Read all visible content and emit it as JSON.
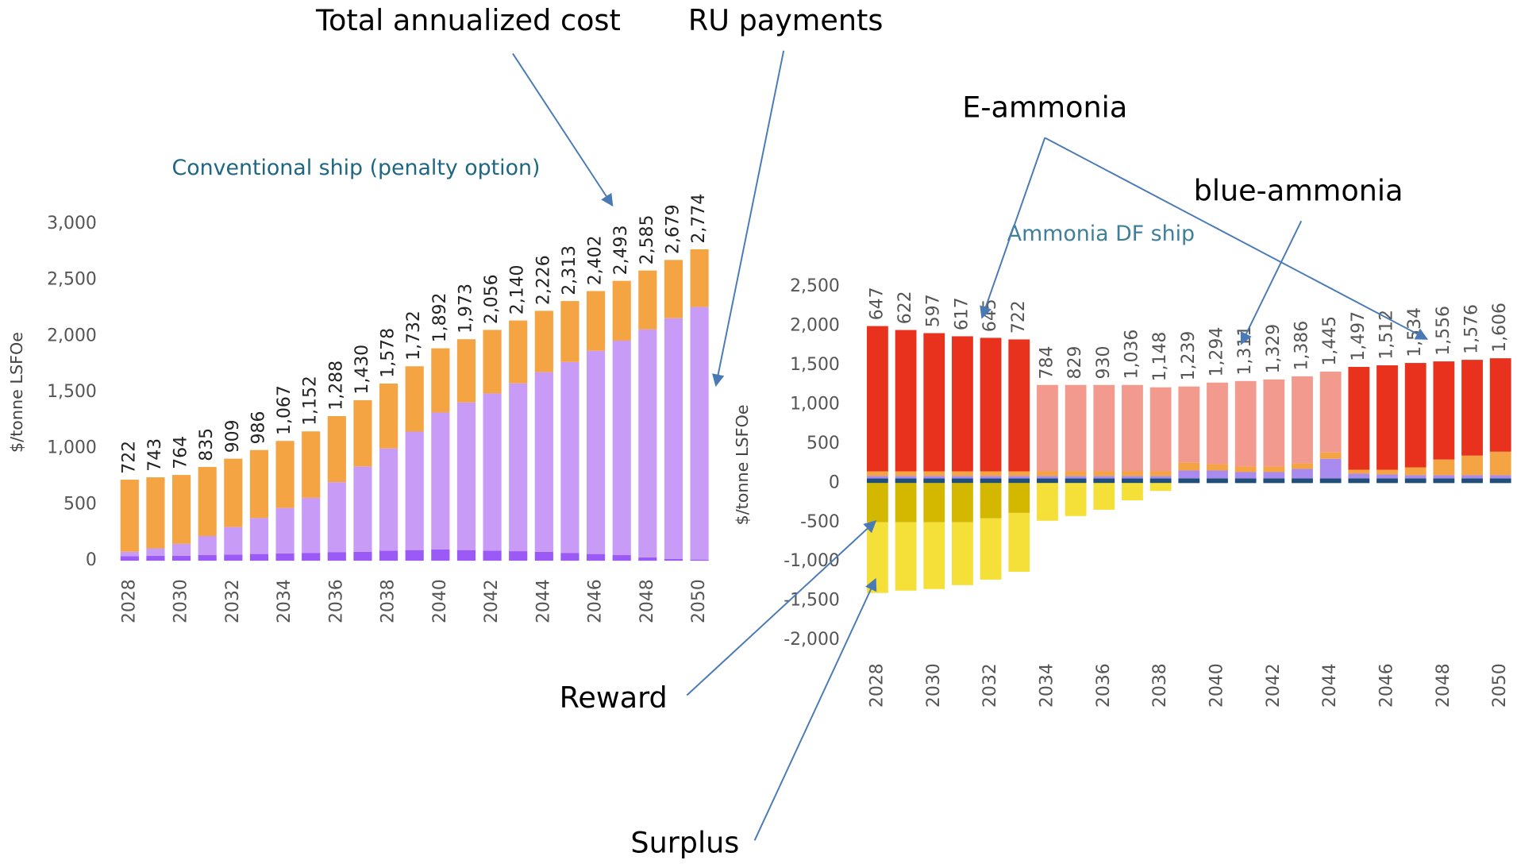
{
  "annotations": [
    "Total annualized cost",
    "RU payments",
    "E-ammonia",
    "blue-ammonia",
    "Reward",
    "Surplus"
  ],
  "chart_data": [
    {
      "type": "bar",
      "stacked": true,
      "title": "Conventional ship (penalty option)",
      "y_label": "$/tonne LSFOe",
      "categories": [
        "2028",
        null,
        "2030",
        null,
        "2032",
        null,
        "2034",
        null,
        "2036",
        null,
        "2038",
        null,
        "2040",
        null,
        "2042",
        null,
        "2044",
        null,
        "2046",
        null,
        "2048",
        null,
        "2050"
      ],
      "series": [
        {
          "color": "#9b59f5",
          "values": [
            40,
            45,
            45,
            50,
            55,
            60,
            65,
            70,
            75,
            80,
            90,
            95,
            100,
            95,
            90,
            85,
            80,
            70,
            60,
            50,
            30,
            15,
            10
          ]
        },
        {
          "name": "RU payments",
          "color": "#c89bf7",
          "values": [
            40,
            65,
            105,
            170,
            245,
            320,
            405,
            490,
            625,
            760,
            910,
            1055,
            1220,
            1315,
            1400,
            1495,
            1600,
            1700,
            1810,
            1910,
            2030,
            2145,
            2250
          ]
        },
        {
          "color": "#f5a443",
          "values": [
            642,
            633,
            614,
            615,
            609,
            606,
            597,
            592,
            588,
            590,
            578,
            582,
            572,
            563,
            566,
            560,
            546,
            543,
            532,
            533,
            525,
            519,
            514
          ]
        }
      ],
      "bar_labels": [
        "722",
        "743",
        "764",
        "835",
        "909",
        "986",
        "1,067",
        "1,152",
        "1,288",
        "1,430",
        "1,578",
        "1,732",
        "1,892",
        "1,973",
        "2,056",
        "2,140",
        "2,226",
        "2,313",
        "2,402",
        "2,493",
        "2,585",
        "2,679",
        "2,774"
      ],
      "ylim": [
        0,
        3000
      ],
      "yticks": [
        0,
        500,
        {
          "value": 1000,
          "label": "1,000"
        },
        {
          "value": 1500,
          "label": "1,500"
        },
        {
          "value": 2000,
          "label": "2,000"
        },
        {
          "value": 2500,
          "label": "2,500"
        },
        {
          "value": 3000,
          "label": "3,000"
        }
      ]
    },
    {
      "type": "bar",
      "stacked": true,
      "title": "Ammonia DF ship",
      "y_label": "$/tonne LSFOe",
      "categories": [
        "2028",
        null,
        "2030",
        null,
        "2032",
        null,
        "2034",
        null,
        "2036",
        null,
        "2038",
        null,
        "2040",
        null,
        "2042",
        null,
        "2044",
        null,
        "2046",
        null,
        "2048",
        null,
        "2050"
      ],
      "series": [
        {
          "color": "#1f4e79",
          "values": [
            60,
            60,
            60,
            60,
            60,
            60,
            60,
            60,
            60,
            60,
            60,
            60,
            60,
            60,
            60,
            60,
            60,
            60,
            60,
            60,
            60,
            60,
            60
          ]
        },
        {
          "color": "#a98bf0",
          "values": [
            30,
            30,
            30,
            30,
            30,
            30,
            30,
            30,
            30,
            30,
            30,
            100,
            100,
            80,
            80,
            120,
            250,
            60,
            50,
            40,
            40,
            40,
            40
          ]
        },
        {
          "color": "#f5a443",
          "values": [
            60,
            60,
            60,
            60,
            60,
            60,
            60,
            60,
            60,
            60,
            60,
            100,
            80,
            70,
            70,
            70,
            80,
            50,
            60,
            100,
            200,
            250,
            300
          ]
        },
        {
          "name": "E-ammonia",
          "color": "#e8321e",
          "values": [
            1850,
            1800,
            1760,
            1720,
            1700,
            1680,
            0,
            0,
            0,
            0,
            0,
            0,
            0,
            0,
            0,
            0,
            0,
            1310,
            1330,
            1330,
            1250,
            1220,
            1190
          ]
        },
        {
          "name": "blue-ammonia",
          "color": "#f29a8e",
          "values": [
            0,
            0,
            0,
            0,
            0,
            0,
            1100,
            1100,
            1100,
            1100,
            1070,
            970,
            1040,
            1090,
            1110,
            1110,
            1030,
            0,
            0,
            0,
            0,
            0,
            0
          ]
        },
        {
          "name": "Reward",
          "color": "#d4b800",
          "values": [
            -500,
            -500,
            -500,
            -500,
            -450,
            -380,
            0,
            0,
            0,
            0,
            0,
            0,
            0,
            0,
            0,
            0,
            0,
            0,
            0,
            0,
            0,
            0,
            0
          ]
        },
        {
          "name": "Surplus",
          "color": "#f5e03a",
          "values": [
            -900,
            -870,
            -850,
            -800,
            -780,
            -750,
            -480,
            -420,
            -340,
            -220,
            -100,
            0,
            0,
            0,
            0,
            0,
            0,
            0,
            0,
            0,
            0,
            0,
            0
          ]
        }
      ],
      "bar_labels": [
        "647",
        "622",
        "597",
        "617",
        "645",
        "722",
        "784",
        "829",
        "930",
        "1,036",
        "1,148",
        "1,239",
        "1,294",
        "1,311",
        "1,329",
        "1,386",
        "1,445",
        "1,497",
        "1,512",
        "1,534",
        "1,556",
        "1,576",
        "1,606"
      ],
      "ylim": [
        -2000,
        2500
      ],
      "yticks": [
        {
          "value": -2000,
          "label": "-2,000"
        },
        {
          "value": -1500,
          "label": "-1,500"
        },
        {
          "value": -1000,
          "label": "-1,000"
        },
        -500,
        0,
        500,
        {
          "value": 1000,
          "label": "1,000"
        },
        {
          "value": 1500,
          "label": "1,500"
        },
        {
          "value": 2000,
          "label": "2,000"
        },
        {
          "value": 2500,
          "label": "2,500"
        }
      ]
    }
  ]
}
